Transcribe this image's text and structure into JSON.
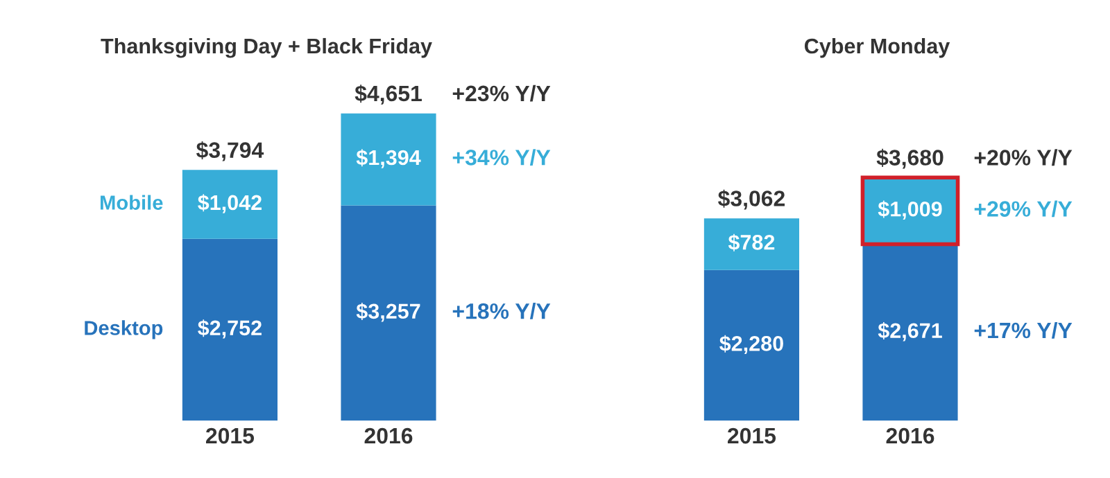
{
  "chart_data": [
    {
      "type": "bar",
      "title": "Thanksgiving Day + Black Friday",
      "categories": [
        "2015",
        "2016"
      ],
      "stacked": true,
      "data_labels": true,
      "legend": false,
      "grid": false,
      "tick_labels": "x",
      "series": [
        {
          "name": "Desktop",
          "color": "#2773bb",
          "values": [
            2752,
            3257
          ],
          "value_labels": [
            "$2,752",
            "$3,257"
          ]
        },
        {
          "name": "Mobile",
          "color": "#37add8",
          "values": [
            1042,
            1394
          ],
          "value_labels": [
            "$1,042",
            "$1,394"
          ]
        }
      ],
      "totals": [
        "$3,794",
        "$4,651"
      ],
      "annotations": [
        "+23% Y/Y",
        "+34% Y/Y",
        "+18% Y/Y"
      ]
    },
    {
      "type": "bar",
      "title": "Cyber Monday",
      "categories": [
        "2015",
        "2016"
      ],
      "stacked": true,
      "data_labels": true,
      "legend": false,
      "grid": false,
      "tick_labels": "x",
      "series": [
        {
          "color": "#2773bb",
          "values": [
            2280,
            2671
          ],
          "value_labels": [
            "$2,280",
            "$2,671"
          ]
        },
        {
          "color": "#37add8",
          "values": [
            782,
            1009
          ],
          "value_labels": [
            "$782",
            "$1,009"
          ]
        }
      ],
      "totals": [
        "$3,062",
        "$3,680"
      ],
      "annotations": [
        "+20% Y/Y",
        "+29% Y/Y",
        "+17% Y/Y"
      ]
    }
  ]
}
